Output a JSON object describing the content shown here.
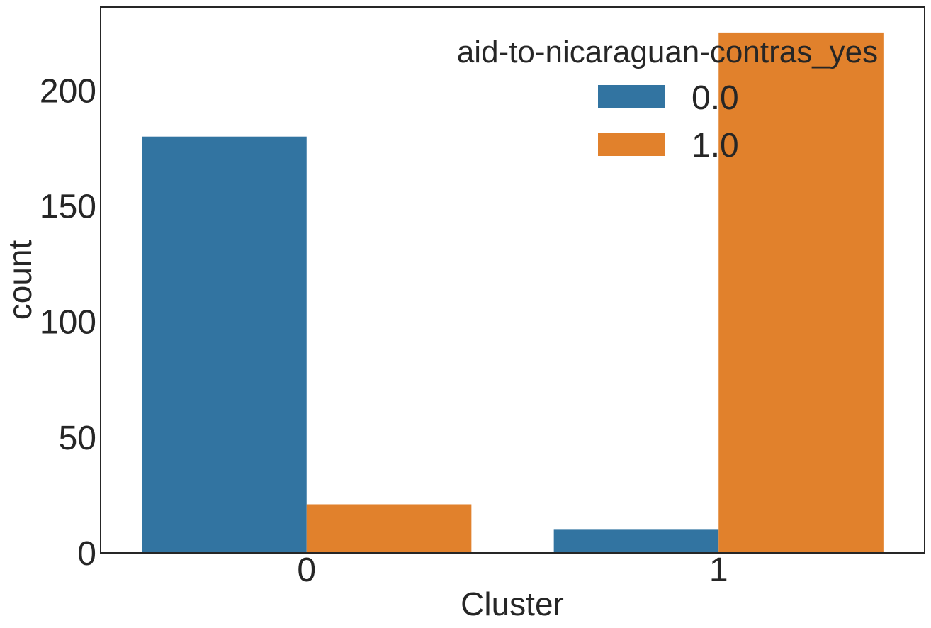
{
  "chart_data": {
    "type": "bar",
    "categories": [
      "0",
      "1"
    ],
    "series": [
      {
        "name": "0.0",
        "values": [
          180,
          10
        ],
        "color": "#3274a1"
      },
      {
        "name": "1.0",
        "values": [
          21,
          225
        ],
        "color": "#e1812c"
      }
    ],
    "xlabel": "Cluster",
    "ylabel": "count",
    "ylim": [
      0,
      236
    ],
    "yticks": [
      0,
      50,
      100,
      150,
      200
    ],
    "ytick_labels": [
      "0",
      "50",
      "100",
      "150",
      "200"
    ],
    "legend": {
      "title": "aid-to-nicaraguan-contras_yes",
      "placement": "top-right"
    },
    "grid": false
  }
}
